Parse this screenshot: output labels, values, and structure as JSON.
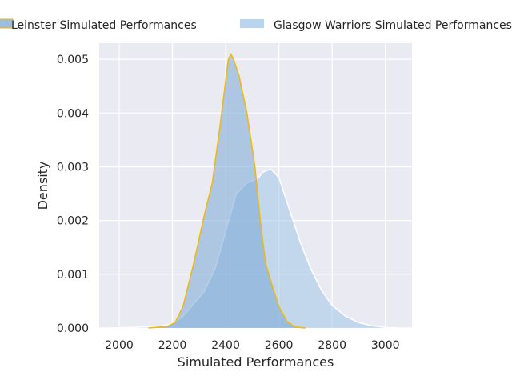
{
  "chart_data": {
    "type": "area",
    "title": "",
    "xlabel": "Simulated Performances",
    "ylabel": "Density",
    "xlim": [
      1925,
      3100
    ],
    "ylim": [
      0,
      0.0053
    ],
    "xticks": [
      2000,
      2200,
      2400,
      2600,
      2800,
      3000
    ],
    "yticks": [
      0,
      0.001,
      0.002,
      0.003,
      0.004,
      0.005
    ],
    "xtick_labels": [
      "2000",
      "2200",
      "2400",
      "2600",
      "2800",
      "3000"
    ],
    "ytick_labels": [
      "0.000",
      "0.001",
      "0.002",
      "0.003",
      "0.004",
      "0.005"
    ],
    "grid": true,
    "legend_position": "top-center",
    "series": [
      {
        "name": "Glasgow Warriors Simulated Performances",
        "fill": "#a1c6e8",
        "fill_opacity": 0.55,
        "stroke": "#ffffff",
        "x": [
          1960,
          2050,
          2150,
          2200,
          2240,
          2280,
          2320,
          2360,
          2400,
          2440,
          2480,
          2520,
          2540,
          2570,
          2600,
          2640,
          2680,
          2720,
          2760,
          2800,
          2850,
          2900,
          2950,
          3000,
          3050
        ],
        "y": [
          0,
          1e-05,
          3e-05,
          8e-05,
          0.00022,
          0.00045,
          0.00068,
          0.0011,
          0.0018,
          0.0025,
          0.0027,
          0.00278,
          0.0029,
          0.00296,
          0.0028,
          0.0022,
          0.0016,
          0.0011,
          0.0007,
          0.00042,
          0.00022,
          0.0001,
          4e-05,
          1e-05,
          0
        ]
      },
      {
        "name": "Leinster Simulated Performances",
        "fill": "#7aa7d6",
        "fill_opacity": 0.55,
        "stroke": "#f2b705",
        "x": [
          2110,
          2180,
          2210,
          2240,
          2280,
          2320,
          2350,
          2380,
          2400,
          2410,
          2420,
          2430,
          2450,
          2480,
          2510,
          2530,
          2550,
          2580,
          2600,
          2630,
          2660,
          2700
        ],
        "y": [
          0,
          3e-05,
          0.0001,
          0.0004,
          0.0012,
          0.0021,
          0.0027,
          0.0038,
          0.0046,
          0.005,
          0.0051,
          0.005,
          0.0047,
          0.004,
          0.003,
          0.002,
          0.0012,
          0.0007,
          0.0004,
          0.00012,
          2e-05,
          0
        ]
      }
    ]
  }
}
